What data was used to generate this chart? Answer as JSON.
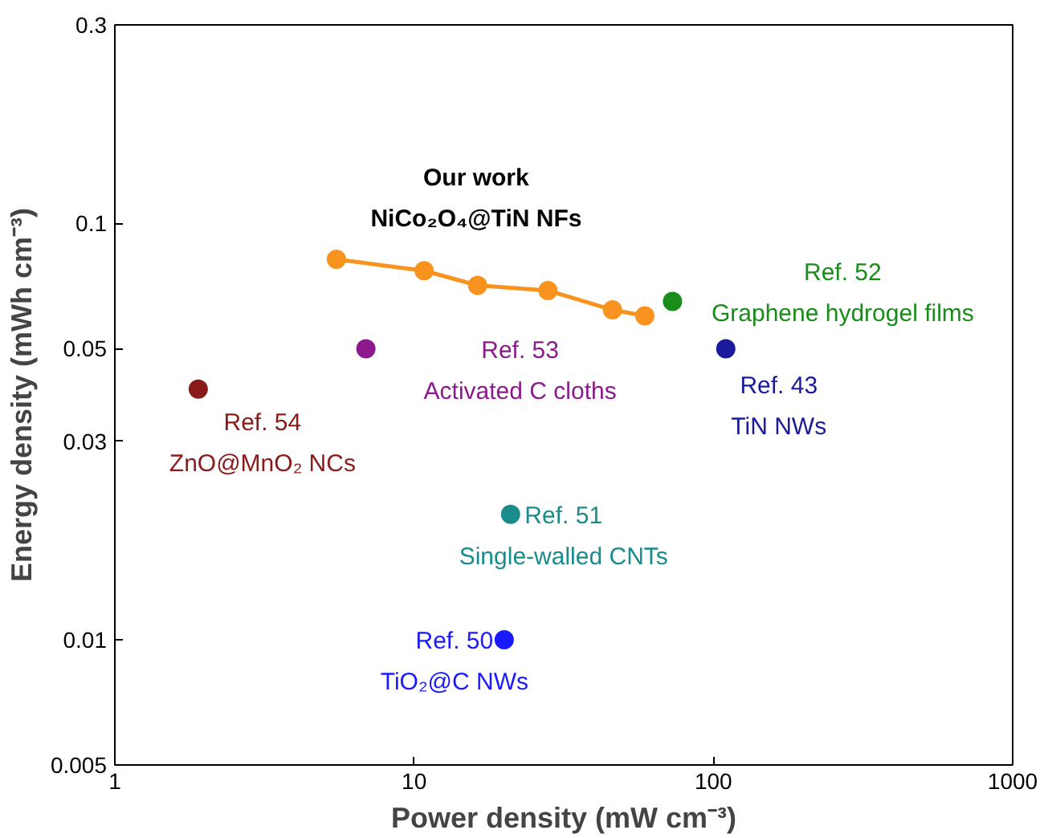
{
  "chart_data": {
    "type": "scatter",
    "xlabel": "Power density (mW cm⁻³)",
    "ylabel": "Energy density (mWh cm⁻³)",
    "log": "xy",
    "xlim": [
      1,
      1000
    ],
    "ylim": [
      0.005,
      0.3
    ],
    "xticks": [
      1,
      10,
      100,
      1000
    ],
    "yticks": [
      0.005,
      0.01,
      0.03,
      0.05,
      0.1,
      0.3
    ],
    "grid": false,
    "marker": "circle",
    "series": [
      {
        "name": "Our work\nNiCo₂O₄@TiN NFs",
        "type": "line",
        "color": "#f7931e",
        "x": [
          5.5,
          10.8,
          16.3,
          28,
          46,
          59
        ],
        "values": [
          0.082,
          0.077,
          0.071,
          0.069,
          0.062,
          0.06
        ]
      },
      {
        "name": "Ref. 52\nGraphene hydrogel films",
        "color": "#1a8c1a",
        "x": [
          73
        ],
        "values": [
          0.065
        ]
      },
      {
        "name": "Ref. 53\nActivated C cloths",
        "color": "#8c1a8c",
        "x": [
          6.9
        ],
        "values": [
          0.05
        ]
      },
      {
        "name": "Ref. 54\nZnO@MnO₂ NCs",
        "color": "#8b1a1a",
        "x": [
          1.9
        ],
        "values": [
          0.04
        ]
      },
      {
        "name": "Ref. 43\nTiN NWs",
        "color": "#1a1a9c",
        "x": [
          110
        ],
        "values": [
          0.05
        ]
      },
      {
        "name": "Ref. 51\nSingle-walled CNTs",
        "color": "#1a8c8c",
        "x": [
          21
        ],
        "values": [
          0.02
        ]
      },
      {
        "name": "Ref. 50\nTiO₂@C NWs",
        "color": "#1a1aff",
        "x": [
          20
        ],
        "values": [
          0.01
        ]
      }
    ]
  }
}
